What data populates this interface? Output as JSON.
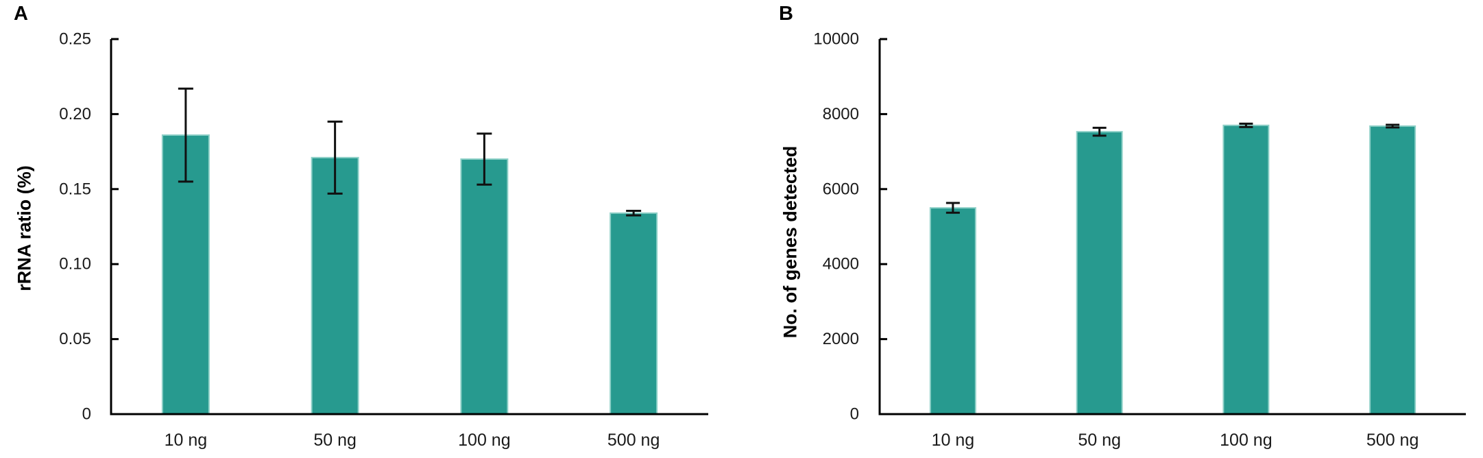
{
  "figure": {
    "background": "#ffffff",
    "bar_fill": "#279a8f",
    "bar_edge": "#8fd0c8",
    "axis_color": "#000000",
    "error_color": "#111111",
    "tick_label_color": "#1a1a1a"
  },
  "chart_data": [
    {
      "type": "bar",
      "panel": "A",
      "title": "",
      "ylabel": "rRNA ratio (%)",
      "xlabel": "",
      "categories": [
        "10 ng",
        "50 ng",
        "100 ng",
        "500 ng"
      ],
      "values": [
        0.186,
        0.171,
        0.17,
        0.134
      ],
      "errors": [
        0.031,
        0.024,
        0.017,
        0.0015
      ],
      "ylim": [
        0,
        0.25
      ],
      "ytick_values": [
        0,
        0.05,
        0.1,
        0.15,
        0.2,
        0.25
      ],
      "ytick_labels": [
        "0",
        "0.05",
        "0.10",
        "0.15",
        "0.20",
        "0.25"
      ],
      "grid": false,
      "legend": null
    },
    {
      "type": "bar",
      "panel": "B",
      "title": "",
      "ylabel": "No. of genes detected",
      "xlabel": "",
      "categories": [
        "10 ng",
        "50 ng",
        "100 ng",
        "500 ng"
      ],
      "values": [
        5500,
        7530,
        7700,
        7680
      ],
      "errors": [
        130,
        105,
        45,
        35
      ],
      "ylim": [
        0,
        10000
      ],
      "ytick_values": [
        0,
        2000,
        4000,
        6000,
        8000,
        10000
      ],
      "ytick_labels": [
        "0",
        "2000",
        "4000",
        "6000",
        "8000",
        "10000"
      ],
      "grid": false,
      "legend": null
    }
  ]
}
